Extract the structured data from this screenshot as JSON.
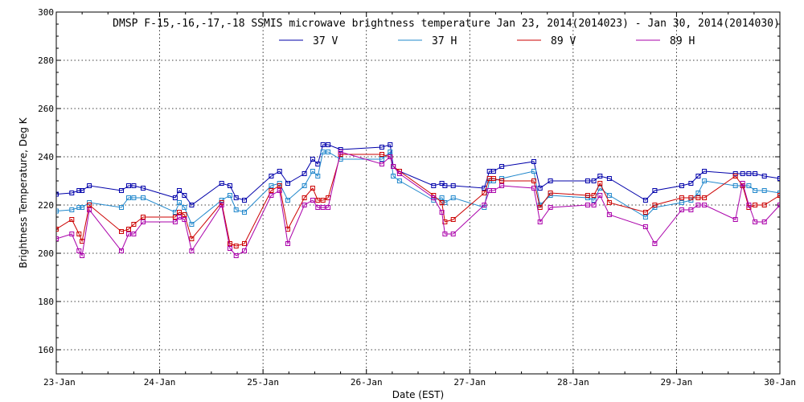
{
  "chart_data": {
    "type": "line",
    "title": "DMSP F-15,-16,-17,-18 SSMIS microwave brightness temperature Jan 23, 2014(2014023) - Jan 30, 2014(2014030)",
    "xlabel": "Date (EST)",
    "ylabel": "Brightness Temperature, Deg K",
    "xlim": [
      0,
      7
    ],
    "ylim": [
      150,
      300
    ],
    "yticks": [
      160,
      180,
      200,
      220,
      240,
      260,
      280,
      300
    ],
    "xtick_labels": [
      "23-Jan",
      "24-Jan",
      "25-Jan",
      "26-Jan",
      "27-Jan",
      "28-Jan",
      "29-Jan",
      "30-Jan"
    ],
    "grid": true,
    "legend_position": "top-center",
    "series": [
      {
        "name": "37 V",
        "color": "#0000aa",
        "x": [
          0.0,
          0.15,
          0.22,
          0.25,
          0.32,
          0.63,
          0.7,
          0.75,
          0.84,
          1.15,
          1.19,
          1.24,
          1.31,
          1.6,
          1.68,
          1.74,
          1.82,
          2.08,
          2.16,
          2.24,
          2.4,
          2.48,
          2.53,
          2.58,
          2.63,
          2.75,
          3.15,
          3.23,
          3.26,
          3.32,
          3.65,
          3.73,
          3.76,
          3.84,
          4.14,
          4.19,
          4.23,
          4.31,
          4.62,
          4.68,
          4.78,
          5.14,
          5.2,
          5.26,
          5.35,
          5.7,
          5.79,
          6.05,
          6.14,
          6.21,
          6.27,
          6.57,
          6.64,
          6.7,
          6.76,
          6.85,
          7.0
        ],
        "y": [
          224.5,
          225,
          226,
          226,
          228,
          226,
          228,
          228,
          227,
          223,
          226,
          224,
          220,
          229,
          228,
          223,
          222,
          232,
          234,
          229,
          233,
          239,
          237,
          245,
          245,
          243,
          244,
          245,
          236,
          234,
          228,
          229,
          228,
          228,
          227,
          234,
          234,
          236,
          238,
          227,
          230,
          230,
          230,
          232,
          231,
          222,
          226,
          228,
          229,
          232,
          234,
          233,
          233,
          233,
          233,
          232,
          231
        ]
      },
      {
        "name": "37 H",
        "color": "#2288cc",
        "x": [
          0.0,
          0.15,
          0.22,
          0.25,
          0.32,
          0.63,
          0.7,
          0.75,
          0.84,
          1.15,
          1.19,
          1.24,
          1.31,
          1.6,
          1.68,
          1.74,
          1.82,
          2.08,
          2.16,
          2.24,
          2.4,
          2.48,
          2.53,
          2.58,
          2.63,
          2.75,
          3.15,
          3.23,
          3.26,
          3.32,
          3.65,
          3.73,
          3.76,
          3.84,
          4.14,
          4.19,
          4.23,
          4.31,
          4.62,
          4.68,
          4.78,
          5.14,
          5.2,
          5.26,
          5.35,
          5.7,
          5.79,
          6.05,
          6.14,
          6.21,
          6.27,
          6.57,
          6.64,
          6.7,
          6.76,
          6.85,
          7.0
        ],
        "y": [
          217.5,
          218,
          219,
          219,
          221,
          219,
          223,
          223,
          223,
          217,
          221,
          219,
          212,
          222,
          224,
          218,
          217,
          228,
          229,
          222,
          228,
          234,
          232,
          242,
          242,
          239,
          239,
          242,
          232,
          230,
          222,
          223,
          221,
          223,
          219,
          230,
          230,
          231,
          234,
          220,
          224,
          223,
          222,
          227,
          224,
          215,
          219,
          221,
          222,
          225,
          230,
          228,
          228,
          228,
          226,
          226,
          225
        ]
      },
      {
        "name": "89 V",
        "color": "#cc0000",
        "x": [
          0.0,
          0.15,
          0.22,
          0.25,
          0.32,
          0.63,
          0.7,
          0.75,
          0.84,
          1.15,
          1.19,
          1.24,
          1.31,
          1.6,
          1.68,
          1.74,
          1.82,
          2.08,
          2.16,
          2.24,
          2.4,
          2.48,
          2.53,
          2.58,
          2.63,
          2.75,
          3.15,
          3.23,
          3.26,
          3.32,
          3.65,
          3.73,
          3.76,
          3.84,
          4.14,
          4.19,
          4.23,
          4.31,
          4.62,
          4.68,
          4.78,
          5.14,
          5.2,
          5.26,
          5.35,
          5.7,
          5.79,
          6.05,
          6.14,
          6.21,
          6.27,
          6.57,
          6.64,
          6.7,
          6.76,
          6.85,
          7.0
        ],
        "y": [
          210,
          214,
          208,
          205,
          220,
          209,
          210,
          212,
          215,
          215,
          217,
          216,
          206,
          221,
          204,
          203,
          204,
          226,
          228,
          210,
          223,
          227,
          222,
          222,
          223,
          241,
          241,
          240,
          236,
          234,
          224,
          221,
          213,
          214,
          225,
          231,
          231,
          230,
          230,
          219,
          225,
          224,
          224,
          229,
          221,
          217,
          220,
          223,
          223,
          223,
          223,
          232,
          228,
          219,
          220,
          220,
          224
        ]
      },
      {
        "name": "89 H",
        "color": "#aa00aa",
        "x": [
          0.0,
          0.15,
          0.22,
          0.25,
          0.32,
          0.63,
          0.7,
          0.75,
          0.84,
          1.15,
          1.19,
          1.24,
          1.31,
          1.6,
          1.68,
          1.74,
          1.82,
          2.08,
          2.16,
          2.24,
          2.4,
          2.48,
          2.53,
          2.58,
          2.63,
          2.75,
          3.15,
          3.23,
          3.26,
          3.32,
          3.65,
          3.73,
          3.76,
          3.84,
          4.14,
          4.19,
          4.23,
          4.31,
          4.62,
          4.68,
          4.78,
          5.14,
          5.2,
          5.26,
          5.35,
          5.7,
          5.79,
          6.05,
          6.14,
          6.21,
          6.27,
          6.57,
          6.64,
          6.7,
          6.76,
          6.85,
          7.0
        ],
        "y": [
          206,
          208,
          201,
          199,
          218,
          201,
          208,
          208,
          213,
          213,
          215,
          214,
          201,
          220,
          202,
          199,
          201,
          224,
          226,
          204,
          220,
          222,
          219,
          219,
          219,
          242,
          237,
          240,
          236,
          233,
          223,
          217,
          208,
          208,
          220,
          226,
          226,
          228,
          227,
          213,
          219,
          220,
          220,
          224,
          216,
          211,
          204,
          218,
          218,
          220,
          220,
          214,
          229,
          220,
          213,
          213,
          220
        ]
      }
    ]
  }
}
